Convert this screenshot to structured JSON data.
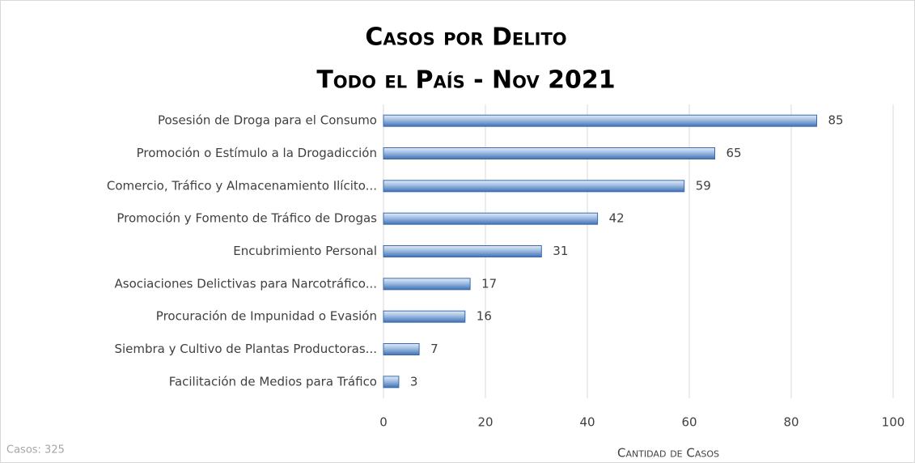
{
  "chart_data": {
    "type": "hbar",
    "title": "Casos por Delito",
    "subtitle": "Todo el País - Nov 2021",
    "x_label": "Cantidad de Casos",
    "annotation": "Casos: 325",
    "categories": [
      "Posesión de Droga para el Consumo",
      "Promoción o Estímulo a la Drogadicción",
      "Comercio, Tráfico y Almacenamiento Ilícito...",
      "Promoción y Fomento de Tráfico de Drogas",
      "Encubrimiento Personal",
      "Asociaciones Delictivas para Narcotráfico...",
      "Procuración de Impunidad o Evasión",
      "Siembra y Cultivo de Plantas Productoras...",
      "Facilitación de Medios para Tráfico"
    ],
    "values": [
      85,
      65,
      59,
      42,
      31,
      17,
      16,
      7,
      3
    ],
    "color": "#4f81bd",
    "xlim": [
      0,
      100
    ],
    "xticks": [
      0,
      20,
      40,
      60,
      80,
      100
    ],
    "grid": true
  }
}
